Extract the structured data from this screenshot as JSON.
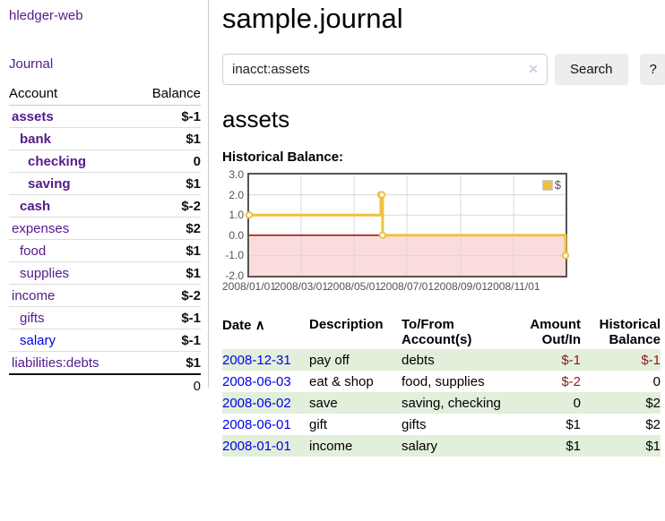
{
  "colors": {
    "link_purple": "#551a8b",
    "link_blue": "#0000ee",
    "negative_strong": "#8b1a1a",
    "negative_soft": "#c77f84",
    "row_highlight_green": "#e2efdb",
    "chart_line_yellow": "#edc240",
    "chart_negative_region_pink": "#fbdcdc",
    "chart_zero_line_red": "#aa0000"
  },
  "sidebar": {
    "brand": "hledger-web",
    "nav_journal": "Journal",
    "accounts_header": {
      "account": "Account",
      "balance": "Balance"
    },
    "accounts": [
      {
        "name": "assets",
        "level": 1,
        "bold": true,
        "link": "purple",
        "balance": "$-1",
        "balance_class": "neg-strong"
      },
      {
        "name": "bank",
        "level": 2,
        "bold": true,
        "link": "purple",
        "balance": "$1",
        "balance_class": ""
      },
      {
        "name": "checking",
        "level": 3,
        "bold": true,
        "link": "purple",
        "balance": "0",
        "balance_class": ""
      },
      {
        "name": "saving",
        "level": 3,
        "bold": true,
        "link": "purple",
        "balance": "$1",
        "balance_class": ""
      },
      {
        "name": "cash",
        "level": 2,
        "bold": true,
        "link": "purple",
        "balance": "$-2",
        "balance_class": "neg-strong"
      },
      {
        "name": "expenses",
        "level": 1,
        "bold": false,
        "link": "purple",
        "balance": "$2",
        "balance_class": ""
      },
      {
        "name": "food",
        "level": 2,
        "bold": false,
        "link": "purple",
        "balance": "$1",
        "balance_class": ""
      },
      {
        "name": "supplies",
        "level": 2,
        "bold": false,
        "link": "purple",
        "balance": "$1",
        "balance_class": ""
      },
      {
        "name": "income",
        "level": 1,
        "bold": false,
        "link": "purple",
        "balance": "$-2",
        "balance_class": "neg-soft"
      },
      {
        "name": "gifts",
        "level": 2,
        "bold": false,
        "link": "purple",
        "balance": "$-1",
        "balance_class": "neg-soft"
      },
      {
        "name": "salary",
        "level": 2,
        "bold": false,
        "link": "blue",
        "balance": "$-1",
        "balance_class": "neg-soft"
      },
      {
        "name": "liabilities:debts",
        "level": 1,
        "bold": false,
        "link": "purple",
        "balance": "$1",
        "balance_class": ""
      }
    ],
    "total": "0"
  },
  "main": {
    "title": "sample.journal",
    "search": {
      "value": "inacct:assets",
      "clear_icon": "✕",
      "search_button": "Search",
      "help_button": "?"
    },
    "account_heading": "assets",
    "chart_heading": "Historical Balance:"
  },
  "chart_data": {
    "type": "line",
    "step": true,
    "title": "Historical Balance",
    "legend_position": "top-right",
    "legend": [
      {
        "label": "$",
        "color": "#edc240"
      }
    ],
    "grid": true,
    "ylim": [
      -2,
      3
    ],
    "xlim_days": [
      0,
      365
    ],
    "y_ticks": [
      {
        "label": "3.0",
        "value": 3
      },
      {
        "label": "2.0",
        "value": 2
      },
      {
        "label": "1.0",
        "value": 1
      },
      {
        "label": "0.0",
        "value": 0
      },
      {
        "label": "-1.0",
        "value": -1
      },
      {
        "label": "-2.0",
        "value": -2
      }
    ],
    "x_ticks": [
      {
        "label": "2008/01/01",
        "day": 0
      },
      {
        "label": "2008/03/01",
        "day": 60
      },
      {
        "label": "2008/05/01",
        "day": 121
      },
      {
        "label": "2008/07/01",
        "day": 182
      },
      {
        "label": "2008/09/01",
        "day": 244
      },
      {
        "label": "2008/11/01",
        "day": 305
      }
    ],
    "series": [
      {
        "name": "$",
        "color": "#edc240",
        "points": [
          {
            "date": "2008-01-01",
            "day": 0,
            "value": 1
          },
          {
            "date": "2008-06-01",
            "day": 152,
            "value": 2
          },
          {
            "date": "2008-06-02",
            "day": 153,
            "value": 2
          },
          {
            "date": "2008-06-03",
            "day": 154,
            "value": 0
          },
          {
            "date": "2008-12-31",
            "day": 365,
            "value": -1
          }
        ]
      }
    ],
    "negative_region": {
      "from": 0,
      "to": -2,
      "color": "#fbdcdc"
    },
    "zero_line_color": "#aa0000"
  },
  "register": {
    "headers": {
      "date": "Date",
      "sort_icon": "∧",
      "description": "Description",
      "accounts1": "To/From",
      "accounts2": "Account(s)",
      "amount1": "Amount",
      "amount2": "Out/In",
      "balance1": "Historical",
      "balance2": "Balance"
    },
    "rows": [
      {
        "date": "2008-12-31",
        "description": "pay off",
        "accounts": "debts",
        "amount": "$-1",
        "amount_neg": true,
        "balance": "$-1",
        "balance_neg": true,
        "highlight": true
      },
      {
        "date": "2008-06-03",
        "description": "eat & shop",
        "accounts": "food, supplies",
        "amount": "$-2",
        "amount_neg": true,
        "balance": "0",
        "balance_neg": false,
        "highlight": false
      },
      {
        "date": "2008-06-02",
        "description": "save",
        "accounts": "saving, checking",
        "amount": "0",
        "amount_neg": false,
        "balance": "$2",
        "balance_neg": false,
        "highlight": true
      },
      {
        "date": "2008-06-01",
        "description": "gift",
        "accounts": "gifts",
        "amount": "$1",
        "amount_neg": false,
        "balance": "$2",
        "balance_neg": false,
        "highlight": false
      },
      {
        "date": "2008-01-01",
        "description": "income",
        "accounts": "salary",
        "amount": "$1",
        "amount_neg": false,
        "balance": "$1",
        "balance_neg": false,
        "highlight": true
      }
    ]
  }
}
